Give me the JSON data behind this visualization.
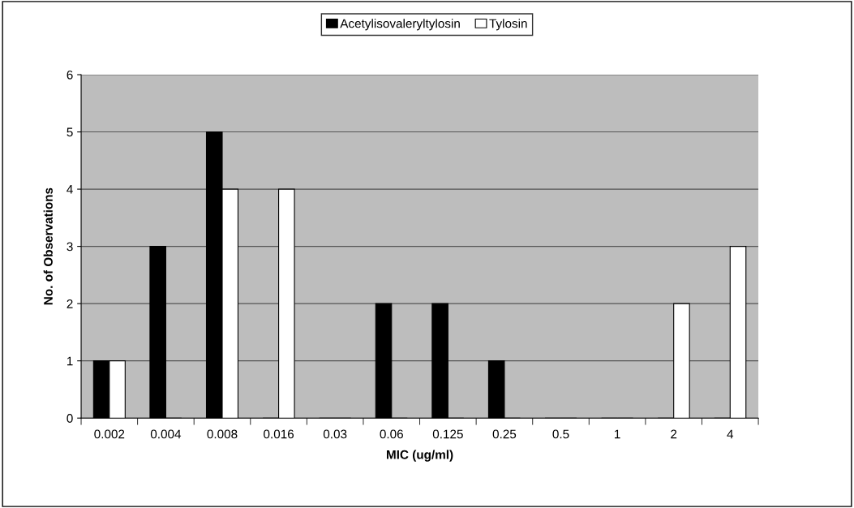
{
  "chart_data": {
    "type": "bar",
    "xlabel": "MIC (ug/ml)",
    "ylabel": "No. of Observations",
    "categories": [
      "0.002",
      "0.004",
      "0.008",
      "0.016",
      "0.03",
      "0.06",
      "0.125",
      "0.25",
      "0.5",
      "1",
      "2",
      "4"
    ],
    "series": [
      {
        "name": "Acetylisovaleryltylosin",
        "color": "#000000",
        "values": [
          1,
          3,
          5,
          0,
          0,
          2,
          2,
          1,
          0,
          0,
          0,
          0
        ]
      },
      {
        "name": "Tylosin",
        "color": "#ffffff",
        "values": [
          1,
          0,
          4,
          4,
          0,
          0,
          0,
          0,
          0,
          0,
          2,
          3
        ]
      }
    ],
    "ylim": [
      0,
      6
    ],
    "yticks": [
      0,
      1,
      2,
      3,
      4,
      5,
      6
    ],
    "grid": "y",
    "legend": "top"
  }
}
